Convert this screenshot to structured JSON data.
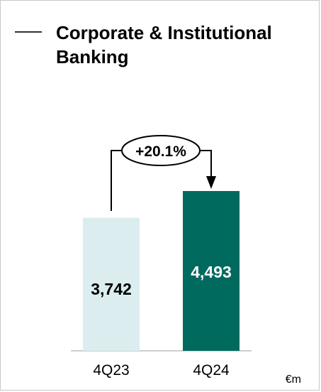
{
  "panel": {
    "title": "Corporate & Institutional Banking",
    "unit": "€m"
  },
  "chart_data": {
    "type": "bar",
    "categories": [
      "4Q23",
      "4Q24"
    ],
    "values": [
      3742,
      4493
    ],
    "value_labels": [
      "3,742",
      "4,493"
    ],
    "change_label": "+20.1%",
    "colors": [
      "#dcedef",
      "#006a5f"
    ],
    "value_label_colors": [
      "#000000",
      "#ffffff"
    ],
    "ylim": [
      0,
      4493
    ]
  }
}
